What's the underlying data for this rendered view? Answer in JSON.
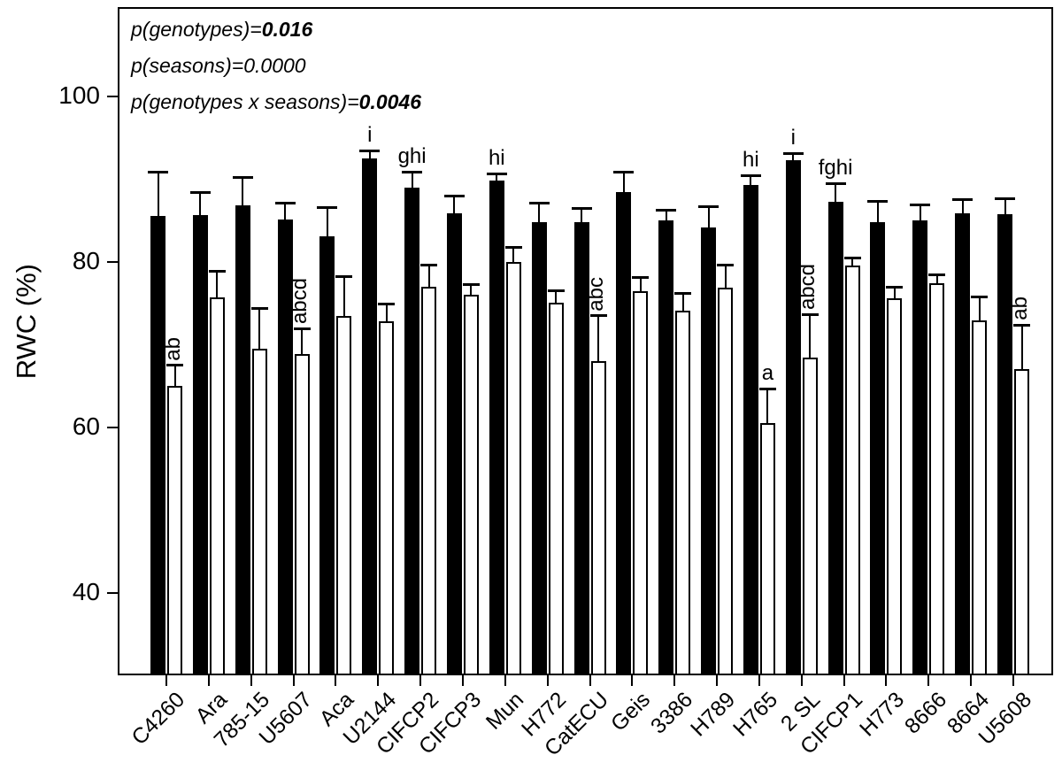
{
  "chart_data": {
    "type": "bar",
    "title": "",
    "ylabel": "RWC (%)",
    "xlabel": "",
    "ylim": [
      30,
      110
    ],
    "yticks": [
      40,
      60,
      80,
      100
    ],
    "grid": false,
    "legend": "none",
    "p_annotations": [
      {
        "prefix": "p(genotypes)=",
        "value": "0.016",
        "bold": true
      },
      {
        "prefix": "p(seasons)=",
        "value": "0.0000",
        "bold": false
      },
      {
        "prefix": "p(genotypes x seasons)=",
        "value": "0.0046",
        "bold": true
      }
    ],
    "categories": [
      "C4260",
      "Ara",
      "785-15",
      "U5607",
      "Aca",
      "U2144",
      "CIFCP2",
      "CIFCP3",
      "Mun",
      "H772",
      "CatECU",
      "Geis",
      "3386",
      "H789",
      "H765",
      "2 SL",
      "CIFCP1",
      "H773",
      "8666",
      "8664",
      "U5608"
    ],
    "series": [
      {
        "name": "filled-black-bars",
        "fill": "#000000",
        "values": [
          85.5,
          85.6,
          86.8,
          85.1,
          83.1,
          92.5,
          88.9,
          85.8,
          89.8,
          84.8,
          84.8,
          88.4,
          85.0,
          84.1,
          89.2,
          92.2,
          87.2,
          84.8,
          85.0,
          85.8,
          85.7
        ],
        "errors": [
          5.2,
          2.7,
          3.3,
          1.9,
          3.4,
          0.8,
          1.8,
          2.1,
          0.7,
          2.2,
          1.6,
          2.3,
          1.1,
          2.5,
          1.1,
          0.8,
          2.2,
          2.4,
          1.8,
          1.6,
          1.8
        ],
        "letters": [
          "",
          "",
          "",
          "",
          "",
          "i",
          "ghi",
          "",
          "hi",
          "",
          "",
          "",
          "",
          "",
          "hi",
          "i",
          "fghi",
          "",
          "",
          "",
          ""
        ],
        "letters_vertical": [
          false,
          false,
          false,
          false,
          false,
          false,
          false,
          false,
          false,
          false,
          false,
          false,
          false,
          false,
          false,
          false,
          false,
          false,
          false,
          false,
          false
        ]
      },
      {
        "name": "open-white-bars",
        "fill": "#ffffff",
        "values": [
          65.0,
          75.7,
          69.5,
          68.8,
          73.4,
          72.8,
          77.0,
          76.0,
          80.0,
          75.0,
          68.0,
          76.4,
          74.1,
          76.9,
          60.5,
          68.4,
          79.5,
          75.6,
          77.4,
          72.9,
          67.0
        ],
        "errors": [
          2.4,
          3.1,
          4.8,
          3.0,
          4.7,
          2.0,
          2.5,
          1.2,
          1.7,
          1.4,
          5.4,
          1.6,
          2.0,
          2.6,
          4.1,
          5.1,
          0.9,
          1.3,
          0.9,
          2.8,
          5.3
        ],
        "letters": [
          "ab",
          "",
          "",
          "abcd",
          "",
          "",
          "",
          "",
          "",
          "",
          "abc",
          "",
          "",
          "",
          "a",
          "abcd",
          "",
          "",
          "",
          "",
          "ab"
        ],
        "letters_vertical": [
          true,
          false,
          false,
          true,
          false,
          false,
          false,
          false,
          false,
          false,
          true,
          false,
          false,
          false,
          false,
          true,
          false,
          false,
          false,
          false,
          true
        ]
      }
    ]
  }
}
